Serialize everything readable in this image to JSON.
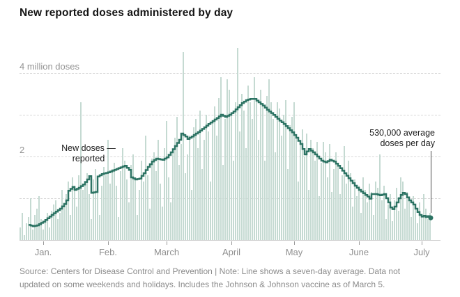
{
  "title": "New reported doses administered by day",
  "annotations": {
    "left_line1": "New doses —",
    "left_line2": "reported",
    "right_line1": "530,000 average",
    "right_line2": "doses per day"
  },
  "source_line1": "Source: Centers for Disease Control and Prevention | Note: Line shows a seven-day average. Data not",
  "source_line2": "updated on some weekends and holidays. Includes the Johnson & Johnson vaccine as of March 5.",
  "colors": {
    "bar": "#c5dad2",
    "line": "#2c7363",
    "grid": "#d7d7d7",
    "axis_text": "#8f8f8f",
    "pointer": "#4a4a4a"
  },
  "chart_data": {
    "type": "bar",
    "unit": "million doses per day",
    "note": "bars are daily reported doses, line is seven-day average",
    "ylim": [
      0,
      4.8
    ],
    "gridline_values": [
      1,
      2,
      3,
      4
    ],
    "y_tick_labels": [
      {
        "value": 4,
        "label": "4 million doses"
      },
      {
        "value": 2,
        "label": "2"
      }
    ],
    "x_ticks": [
      {
        "label": "Jan.",
        "day": 11
      },
      {
        "label": "Feb.",
        "day": 42
      },
      {
        "label": "March",
        "day": 70
      },
      {
        "label": "April",
        "day": 101
      },
      {
        "label": "May",
        "day": 131
      },
      {
        "label": "June",
        "day": 162
      },
      {
        "label": "July",
        "day": 192
      }
    ],
    "end_value": 0.53,
    "end_value_label": "530,000 average doses per day",
    "bars_daily": [
      0.3,
      0.65,
      0.12,
      0.4,
      0.55,
      1.0,
      0.25,
      0.6,
      0.75,
      1.05,
      0.5,
      0.25,
      0.5,
      0.65,
      0.3,
      0.7,
      0.85,
      0.95,
      0.5,
      0.65,
      1.2,
      0.9,
      1.1,
      1.4,
      0.6,
      1.5,
      1.3,
      0.8,
      1.55,
      3.3,
      1.2,
      1.35,
      1.6,
      1.1,
      0.5,
      1.45,
      1.7,
      1.5,
      0.6,
      1.3,
      1.75,
      1.55,
      2.4,
      1.35,
      1.7,
      1.85,
      1.3,
      0.55,
      1.65,
      2.2,
      1.9,
      1.45,
      0.9,
      1.8,
      2.05,
      1.5,
      0.6,
      1.2,
      1.9,
      1.4,
      2.5,
      1.55,
      0.75,
      1.95,
      2.1,
      1.65,
      2.4,
      1.35,
      0.8,
      2.2,
      2.85,
      1.5,
      0.9,
      2.1,
      2.45,
      2.95,
      1.8,
      2.3,
      4.5,
      1.6,
      2.05,
      2.5,
      1.2,
      2.7,
      2.9,
      2.2,
      3.1,
      1.7,
      2.4,
      3.0,
      2.6,
      1.4,
      2.8,
      3.2,
      2.5,
      3.4,
      3.9,
      1.8,
      2.9,
      3.85,
      3.6,
      3.0,
      1.9,
      3.3,
      4.6,
      2.6,
      3.5,
      3.1,
      2.2,
      3.7,
      3.3,
      2.9,
      3.9,
      3.4,
      2.4,
      3.6,
      3.2,
      1.9,
      3.45,
      3.85,
      3.3,
      2.9,
      2.1,
      3.3,
      3.15,
      2.5,
      3.0,
      3.35,
      1.7,
      2.75,
      2.95,
      3.3,
      2.5,
      1.4,
      2.3,
      2.65,
      2.0,
      2.55,
      1.2,
      2.4,
      2.2,
      1.9,
      2.35,
      1.05,
      1.85,
      2.35,
      2.1,
      1.5,
      2.3,
      1.15,
      1.7,
      2.1,
      1.8,
      1.1,
      1.55,
      2.25,
      1.35,
      1.9,
      1.6,
      0.8,
      1.45,
      1.05,
      1.3,
      0.65,
      1.5,
      1.2,
      0.9,
      1.35,
      1.15,
      0.6,
      1.4,
      1.25,
      2.05,
      0.95,
      1.3,
      0.5,
      0.85,
      1.1,
      0.45,
      0.95,
      1.25,
      0.7,
      1.5,
      1.4,
      0.75,
      1.15,
      0.95,
      0.55,
      1.05,
      0.85,
      0.4,
      0.9,
      0.6,
      1.1,
      0.75,
      0.5,
      0.65
    ],
    "line_7day_avg": [
      [
        4,
        0.36
      ],
      [
        6,
        0.33
      ],
      [
        8,
        0.35
      ],
      [
        11,
        0.44
      ],
      [
        13,
        0.52
      ],
      [
        15,
        0.6
      ],
      [
        17,
        0.68
      ],
      [
        19,
        0.75
      ],
      [
        21,
        0.86
      ],
      [
        22,
        0.95
      ],
      [
        23,
        1.18
      ],
      [
        25,
        1.27
      ],
      [
        26,
        1.2
      ],
      [
        28,
        1.25
      ],
      [
        30,
        1.33
      ],
      [
        32,
        1.45
      ],
      [
        33,
        1.53
      ],
      [
        34,
        1.13
      ],
      [
        36,
        1.15
      ],
      [
        37,
        1.52
      ],
      [
        39,
        1.58
      ],
      [
        42,
        1.62
      ],
      [
        44,
        1.66
      ],
      [
        46,
        1.7
      ],
      [
        48,
        1.74
      ],
      [
        50,
        1.78
      ],
      [
        52,
        1.68
      ],
      [
        53,
        1.5
      ],
      [
        55,
        1.45
      ],
      [
        57,
        1.47
      ],
      [
        59,
        1.6
      ],
      [
        61,
        1.75
      ],
      [
        63,
        1.88
      ],
      [
        65,
        1.95
      ],
      [
        68,
        1.92
      ],
      [
        70,
        1.98
      ],
      [
        72,
        2.1
      ],
      [
        74,
        2.25
      ],
      [
        76,
        2.4
      ],
      [
        77,
        2.55
      ],
      [
        79,
        2.48
      ],
      [
        80,
        2.42
      ],
      [
        82,
        2.48
      ],
      [
        84,
        2.55
      ],
      [
        86,
        2.62
      ],
      [
        88,
        2.7
      ],
      [
        90,
        2.78
      ],
      [
        92,
        2.85
      ],
      [
        94,
        2.92
      ],
      [
        96,
        3.0
      ],
      [
        98,
        2.95
      ],
      [
        100,
        3.0
      ],
      [
        102,
        3.08
      ],
      [
        104,
        3.18
      ],
      [
        106,
        3.28
      ],
      [
        108,
        3.35
      ],
      [
        110,
        3.38
      ],
      [
        112,
        3.38
      ],
      [
        114,
        3.3
      ],
      [
        116,
        3.22
      ],
      [
        118,
        3.12
      ],
      [
        120,
        3.04
      ],
      [
        122,
        2.95
      ],
      [
        124,
        2.86
      ],
      [
        126,
        2.78
      ],
      [
        128,
        2.68
      ],
      [
        130,
        2.58
      ],
      [
        132,
        2.45
      ],
      [
        134,
        2.3
      ],
      [
        135,
        2.18
      ],
      [
        136,
        2.05
      ],
      [
        137,
        2.12
      ],
      [
        138,
        2.18
      ],
      [
        140,
        2.1
      ],
      [
        142,
        2.0
      ],
      [
        144,
        1.9
      ],
      [
        146,
        1.86
      ],
      [
        148,
        1.92
      ],
      [
        150,
        1.88
      ],
      [
        152,
        1.78
      ],
      [
        154,
        1.66
      ],
      [
        156,
        1.54
      ],
      [
        158,
        1.42
      ],
      [
        160,
        1.3
      ],
      [
        162,
        1.2
      ],
      [
        164,
        1.12
      ],
      [
        166,
        1.04
      ],
      [
        167,
        0.99
      ],
      [
        168,
        1.1
      ],
      [
        170,
        1.1
      ],
      [
        172,
        1.07
      ],
      [
        174,
        1.1
      ],
      [
        175,
        1.0
      ],
      [
        176,
        0.9
      ],
      [
        177,
        0.78
      ],
      [
        178,
        0.74
      ],
      [
        179,
        0.8
      ],
      [
        180,
        0.9
      ],
      [
        181,
        1.0
      ],
      [
        182,
        1.08
      ],
      [
        183,
        1.13
      ],
      [
        184,
        1.1
      ],
      [
        185,
        1.02
      ],
      [
        186,
        0.95
      ],
      [
        188,
        0.85
      ],
      [
        189,
        0.75
      ],
      [
        190,
        0.67
      ],
      [
        191,
        0.6
      ],
      [
        192,
        0.56
      ],
      [
        193,
        0.58
      ],
      [
        194,
        0.55
      ],
      [
        195,
        0.57
      ],
      [
        196,
        0.53
      ]
    ]
  }
}
